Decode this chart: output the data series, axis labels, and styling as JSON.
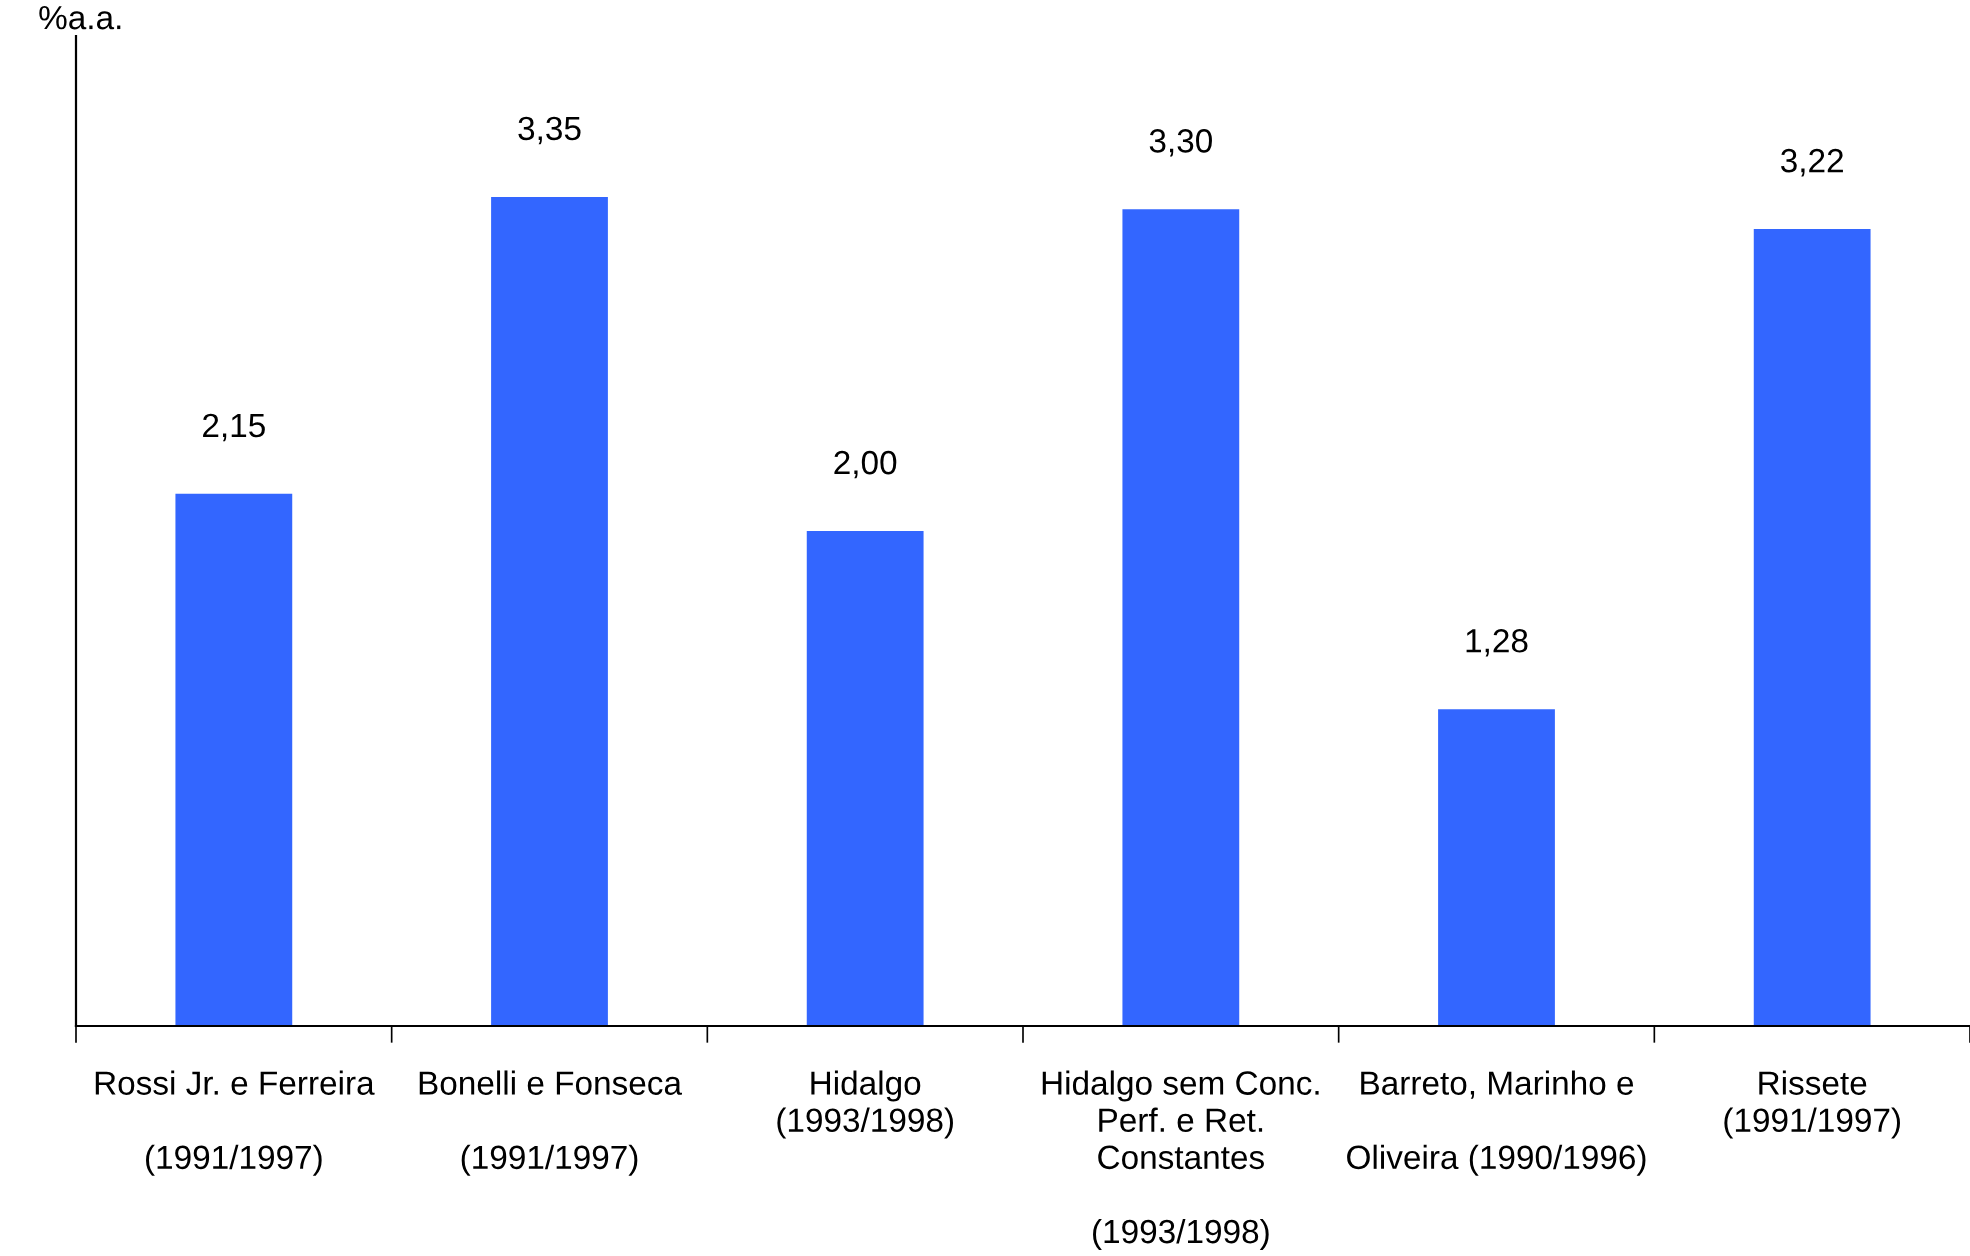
{
  "chart_data": {
    "type": "bar",
    "ylabel": "%a.a.",
    "categories": [
      "Rossi Jr. e Ferreira\n\n(1991/1997)",
      "Bonelli e Fonseca\n\n(1991/1997)",
      "Hidalgo\n(1993/1998)",
      "Hidalgo sem Conc.\nPerf. e Ret.\nConstantes\n\n(1993/1998)",
      "Barreto, Marinho e\n\nOliveira (1990/1996)",
      "Rissete\n(1991/1997)"
    ],
    "values": [
      2.15,
      3.35,
      2.0,
      3.3,
      1.28,
      3.22
    ],
    "value_labels": [
      "2,15",
      "3,35",
      "2,00",
      "3,30",
      "1,28",
      "3,22"
    ],
    "color": "#3366ff",
    "ylim": [
      0,
      4
    ],
    "grid": false,
    "legend": false
  }
}
